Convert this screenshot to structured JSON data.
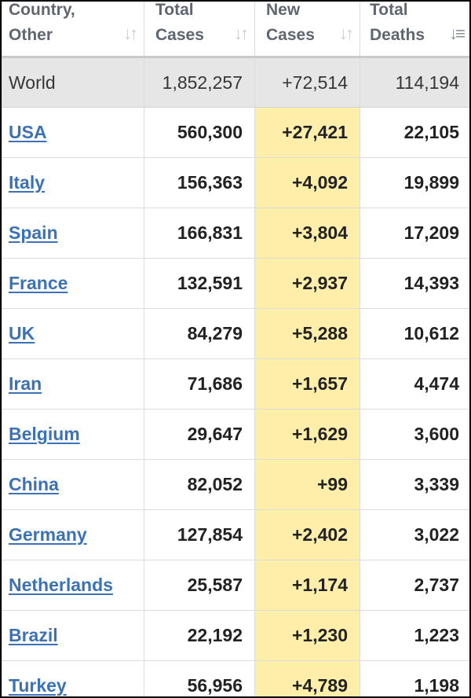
{
  "table": {
    "headers": [
      {
        "line1": "Country,",
        "line2": "Other",
        "sort_icon": "sort-icon"
      },
      {
        "line1": "Total",
        "line2": "Cases",
        "sort_icon": "sort-icon"
      },
      {
        "line1": "New",
        "line2": "Cases",
        "sort_icon": "sort-icon"
      },
      {
        "line1": "Total",
        "line2": "Deaths",
        "sort_icon": "sort-desc-icon"
      }
    ],
    "world": {
      "country": "World",
      "total_cases": "1,852,257",
      "new_cases": "+72,514",
      "total_deaths": "114,194"
    },
    "rows": [
      {
        "country": "USA",
        "total_cases": "560,300",
        "new_cases": "+27,421",
        "total_deaths": "22,105"
      },
      {
        "country": "Italy",
        "total_cases": "156,363",
        "new_cases": "+4,092",
        "total_deaths": "19,899"
      },
      {
        "country": "Spain",
        "total_cases": "166,831",
        "new_cases": "+3,804",
        "total_deaths": "17,209"
      },
      {
        "country": "France",
        "total_cases": "132,591",
        "new_cases": "+2,937",
        "total_deaths": "14,393"
      },
      {
        "country": "UK",
        "total_cases": "84,279",
        "new_cases": "+5,288",
        "total_deaths": "10,612"
      },
      {
        "country": "Iran",
        "total_cases": "71,686",
        "new_cases": "+1,657",
        "total_deaths": "4,474"
      },
      {
        "country": "Belgium",
        "total_cases": "29,647",
        "new_cases": "+1,629",
        "total_deaths": "3,600"
      },
      {
        "country": "China",
        "total_cases": "82,052",
        "new_cases": "+99",
        "total_deaths": "3,339"
      },
      {
        "country": "Germany",
        "total_cases": "127,854",
        "new_cases": "+2,402",
        "total_deaths": "3,022"
      },
      {
        "country": "Netherlands",
        "total_cases": "25,587",
        "new_cases": "+1,174",
        "total_deaths": "2,737"
      },
      {
        "country": "Brazil",
        "total_cases": "22,192",
        "new_cases": "+1,230",
        "total_deaths": "1,223"
      },
      {
        "country": "Turkey",
        "total_cases": "56,956",
        "new_cases": "+4,789",
        "total_deaths": "1,198"
      }
    ]
  },
  "colors": {
    "link": "#3b72b6",
    "new_cases_highlight": "#fdeeaa",
    "world_row_bg": "#e6e6e6",
    "header_text": "#5f6670"
  }
}
